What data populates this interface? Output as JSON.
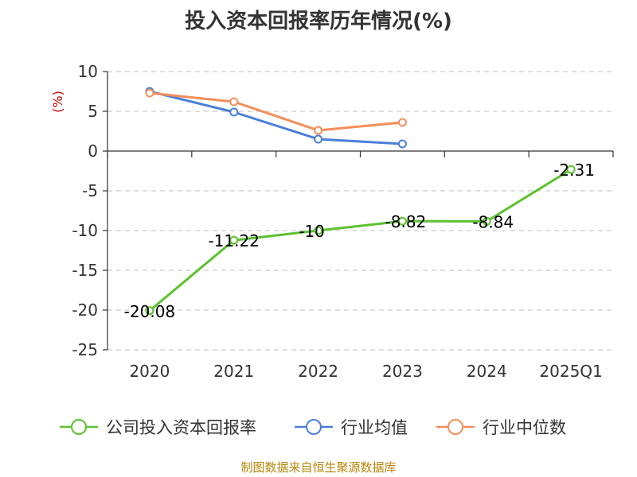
{
  "chart_data": {
    "type": "line",
    "title": "投入资本回报率历年情况(%)",
    "ylabel": "(%)",
    "categories": [
      "2020",
      "2021",
      "2022",
      "2023",
      "2024",
      "2025Q1"
    ],
    "ylim": [
      -25,
      10
    ],
    "yticks": [
      10,
      5,
      0,
      -5,
      -10,
      -15,
      -20,
      -25
    ],
    "grid": true,
    "legend_position": "bottom",
    "series": [
      {
        "name": "公司投入资本回报率",
        "color": "#5cc12e",
        "values": [
          -20.08,
          -11.22,
          -10,
          -8.82,
          -8.84,
          -2.31
        ],
        "labels": [
          "-20.08",
          "-11.22",
          "-10",
          "-8.82",
          "-8.84",
          "-2.31"
        ]
      },
      {
        "name": "行业均值",
        "color": "#4a7fd8",
        "values": [
          7.5,
          4.9,
          1.5,
          0.9,
          null,
          null
        ]
      },
      {
        "name": "行业中位数",
        "color": "#f28e5a",
        "values": [
          7.3,
          6.2,
          2.6,
          3.6,
          null,
          null
        ]
      }
    ],
    "source": "制图数据来自恒生聚源数据库"
  }
}
